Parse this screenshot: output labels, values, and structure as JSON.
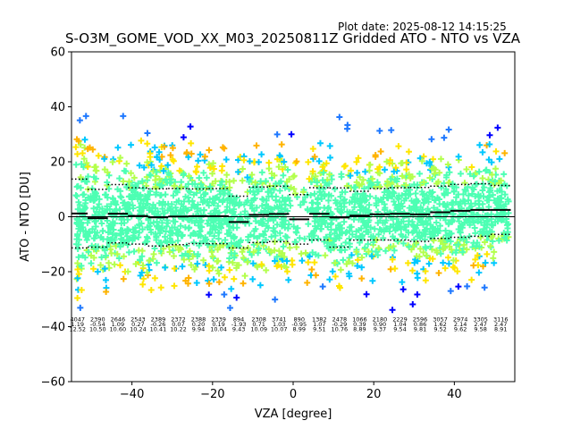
{
  "plot_date": "Plot date: 2025-08-12 14:15:25",
  "chart_data": {
    "type": "scatter",
    "title": "S-O3M_GOME_VOD_XX_M03_20250811Z Gridded ATO - NTO vs VZA",
    "xlabel": "VZA [degree]",
    "ylabel": "ATO - NTO [DU]",
    "xlim": [
      -55,
      55
    ],
    "ylim": [
      -60,
      60
    ],
    "xticks": [
      -40,
      -20,
      0,
      20,
      40
    ],
    "yticks": [
      -60,
      -40,
      -20,
      0,
      20,
      40,
      60
    ],
    "grid": false,
    "zero_line": 0,
    "marker": "+",
    "colors": {
      "dense": "#4dffb3",
      "mid": "#b3ff4d",
      "yellow": "#ffe600",
      "orange": "#ffb300",
      "cyan": "#00c8ff",
      "blue_mid": "#1e78ff",
      "blue": "#0000ff"
    },
    "bins": [
      {
        "x": -53.5,
        "count": "4047",
        "mean": "1.19",
        "std": "12.52",
        "mean_val": 1.19,
        "std_val": 12.52
      },
      {
        "x": -48.5,
        "count": "2390",
        "mean": "-0.54",
        "std": "10.50",
        "mean_val": -0.54,
        "std_val": 10.5
      },
      {
        "x": -43.5,
        "count": "2646",
        "mean": "1.09",
        "std": "10.60",
        "mean_val": 1.09,
        "std_val": 10.6
      },
      {
        "x": -38.5,
        "count": "2543",
        "mean": "0.27",
        "std": "10.24",
        "mean_val": 0.27,
        "std_val": 10.24
      },
      {
        "x": -33.5,
        "count": "2389",
        "mean": "-0.26",
        "std": "10.41",
        "mean_val": -0.26,
        "std_val": 10.41
      },
      {
        "x": -28.5,
        "count": "2372",
        "mean": "0.07",
        "std": "10.22",
        "mean_val": 0.07,
        "std_val": 10.22
      },
      {
        "x": -23.5,
        "count": "2388",
        "mean": "0.20",
        "std": "9.94",
        "mean_val": 0.2,
        "std_val": 9.94
      },
      {
        "x": -18.5,
        "count": "2339",
        "mean": "0.19",
        "std": "10.04",
        "mean_val": 0.19,
        "std_val": 10.04
      },
      {
        "x": -13.5,
        "count": "894",
        "mean": "-1.93",
        "std": "9.43",
        "mean_val": -1.93,
        "std_val": 9.43
      },
      {
        "x": -8.5,
        "count": "2308",
        "mean": "0.71",
        "std": "10.09",
        "mean_val": 0.71,
        "std_val": 10.09
      },
      {
        "x": -3.5,
        "count": "3741",
        "mean": "1.03",
        "std": "10.07",
        "mean_val": 1.03,
        "std_val": 10.07
      },
      {
        "x": 1.5,
        "count": "890",
        "mean": "-0.95",
        "std": "8.99",
        "mean_val": -0.95,
        "std_val": 8.99
      },
      {
        "x": 6.5,
        "count": "1382",
        "mean": "1.07",
        "std": "9.51",
        "mean_val": 1.07,
        "std_val": 9.51
      },
      {
        "x": 11.5,
        "count": "2478",
        "mean": "-0.29",
        "std": "10.76",
        "mean_val": -0.29,
        "std_val": 10.76
      },
      {
        "x": 16.5,
        "count": "1066",
        "mean": "0.39",
        "std": "8.89",
        "mean_val": 0.39,
        "std_val": 8.89
      },
      {
        "x": 21.5,
        "count": "2180",
        "mean": "0.90",
        "std": "9.37",
        "mean_val": 0.9,
        "std_val": 9.37
      },
      {
        "x": 26.5,
        "count": "2229",
        "mean": "1.04",
        "std": "9.54",
        "mean_val": 1.04,
        "std_val": 9.54
      },
      {
        "x": 31.5,
        "count": "2596",
        "mean": "0.86",
        "std": "9.81",
        "mean_val": 0.86,
        "std_val": 9.81
      },
      {
        "x": 36.5,
        "count": "3057",
        "mean": "1.62",
        "std": "9.52",
        "mean_val": 1.62,
        "std_val": 9.52
      },
      {
        "x": 41.5,
        "count": "2974",
        "mean": "2.14",
        "std": "9.62",
        "mean_val": 2.14,
        "std_val": 9.62
      },
      {
        "x": 46.5,
        "count": "3305",
        "mean": "2.47",
        "std": "9.58",
        "mean_val": 2.47,
        "std_val": 9.58
      },
      {
        "x": 51.5,
        "count": "3116",
        "mean": "2.47",
        "std": "8.91",
        "mean_val": 2.47,
        "std_val": 8.91
      }
    ]
  }
}
